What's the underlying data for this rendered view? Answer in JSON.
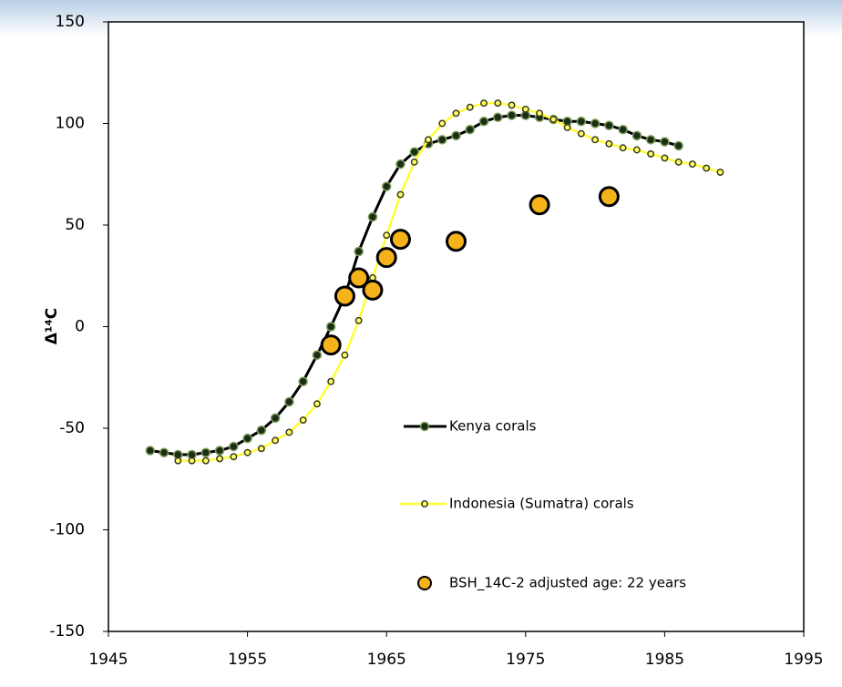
{
  "chart_data": {
    "type": "line",
    "ylabel": "Δ¹⁴C",
    "xlim": [
      1945,
      1995
    ],
    "xticks": [
      1945,
      1955,
      1965,
      1975,
      1985,
      1995
    ],
    "ylim": [
      -150,
      150
    ],
    "yticks": [
      -150,
      -100,
      -50,
      0,
      50,
      100,
      150
    ],
    "grid": false,
    "series": [
      {
        "name": "Kenya corals",
        "mode": "line",
        "color": "#000000",
        "marker_fill": "#1b2e16",
        "marker_stroke": "#7f9f5a",
        "x": [
          1948,
          1949,
          1950,
          1951,
          1952,
          1953,
          1954,
          1955,
          1956,
          1957,
          1958,
          1959,
          1960,
          1961,
          1962,
          1963,
          1964,
          1965,
          1966,
          1967,
          1968,
          1969,
          1970,
          1971,
          1972,
          1973,
          1974,
          1975,
          1976,
          1977,
          1978,
          1979,
          1980,
          1981,
          1982,
          1983,
          1984,
          1985,
          1986
        ],
        "values": [
          -61,
          -62,
          -63,
          -63,
          -62,
          -61,
          -59,
          -55,
          -51,
          -45,
          -37,
          -27,
          -14,
          0,
          15,
          37,
          54,
          69,
          80,
          86,
          90,
          92,
          94,
          97,
          101,
          103,
          104,
          104,
          103,
          102,
          101,
          101,
          100,
          99,
          97,
          94,
          92,
          91,
          89
        ]
      },
      {
        "name": "Indonesia (Sumatra) corals",
        "mode": "line",
        "color": "#ffff33",
        "marker_fill": "#ffff66",
        "marker_stroke": "#3a3a1a",
        "x": [
          1950,
          1951,
          1952,
          1953,
          1954,
          1955,
          1956,
          1957,
          1958,
          1959,
          1960,
          1961,
          1962,
          1963,
          1964,
          1965,
          1966,
          1967,
          1968,
          1969,
          1970,
          1971,
          1972,
          1973,
          1974,
          1975,
          1976,
          1977,
          1978,
          1979,
          1980,
          1981,
          1982,
          1983,
          1984,
          1985,
          1986,
          1987,
          1988,
          1989
        ],
        "values": [
          -66,
          -66,
          -66,
          -65,
          -64,
          -62,
          -60,
          -56,
          -52,
          -46,
          -38,
          -27,
          -14,
          3,
          24,
          45,
          65,
          81,
          92,
          100,
          105,
          108,
          110,
          110,
          109,
          107,
          105,
          102,
          98,
          95,
          92,
          90,
          88,
          87,
          85,
          83,
          81,
          80,
          78,
          76
        ]
      },
      {
        "name": "BSH_14C-2 adjusted age: 22 years",
        "mode": "markers",
        "color": "#f5b21b",
        "marker_fill": "#f5b21b",
        "marker_stroke": "#000000",
        "x": [
          1961,
          1962,
          1963,
          1964,
          1965,
          1966,
          1970,
          1976,
          1981
        ],
        "values": [
          -9,
          15,
          24,
          18,
          34,
          43,
          42,
          60,
          64
        ]
      }
    ]
  }
}
